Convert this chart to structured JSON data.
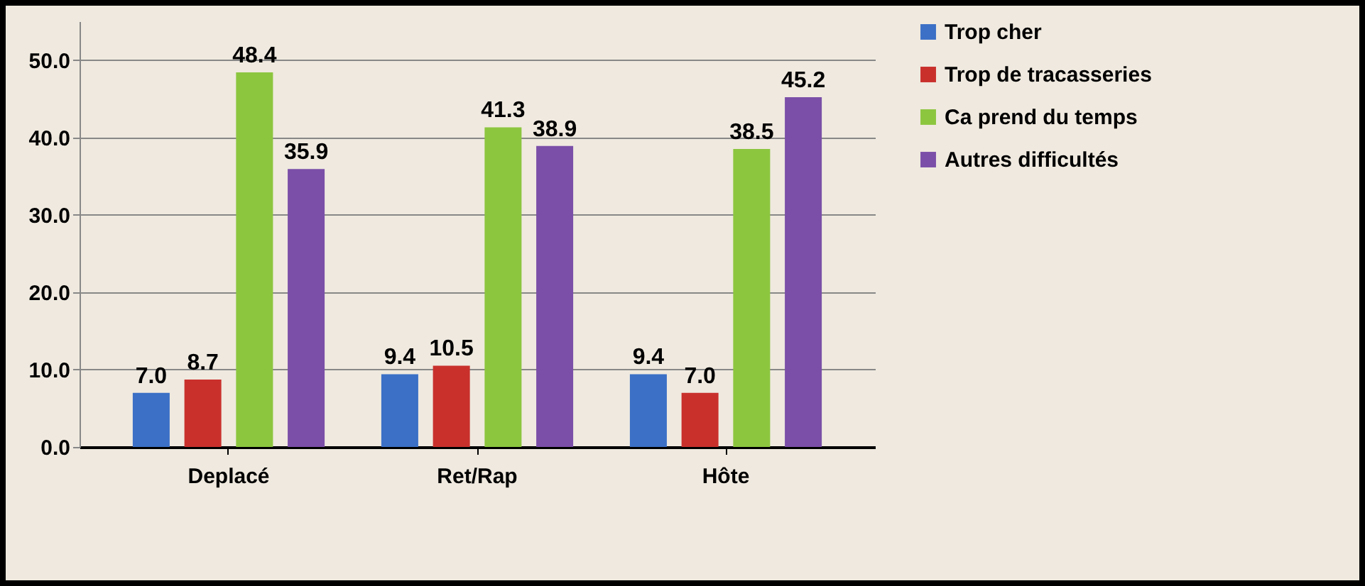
{
  "chart_data": {
    "type": "bar",
    "categories": [
      "Deplacé",
      "Ret/Rap",
      "Hôte"
    ],
    "series": [
      {
        "name": "Trop cher",
        "color": "#3b70c6",
        "values": [
          7.0,
          9.4,
          9.4
        ],
        "value_labels": [
          "7.0",
          "9.4",
          "9.4"
        ]
      },
      {
        "name": "Trop de tracasseries",
        "color": "#c9302c",
        "values": [
          8.7,
          10.5,
          7.0
        ],
        "value_labels": [
          "8.7",
          "10.5",
          "7.0"
        ]
      },
      {
        "name": "Ca prend du temps",
        "color": "#8cc63f",
        "values": [
          48.4,
          41.3,
          38.5
        ],
        "value_labels": [
          "48.4",
          "41.3",
          "38.5"
        ]
      },
      {
        "name": "Autres difficultés",
        "color": "#7b4fa8",
        "values": [
          35.9,
          38.9,
          45.2
        ],
        "value_labels": [
          "35.9",
          "38.9",
          "45.2"
        ]
      }
    ],
    "ylim": [
      0,
      55
    ],
    "yticks": [
      {
        "value": 0,
        "label": "0.0"
      },
      {
        "value": 10,
        "label": "10.0"
      },
      {
        "value": 20,
        "label": "20.0"
      },
      {
        "value": 30,
        "label": "30.0"
      },
      {
        "value": 40,
        "label": "40.0"
      },
      {
        "value": 50,
        "label": "50.0"
      }
    ],
    "grid": "y",
    "legend": "right"
  }
}
